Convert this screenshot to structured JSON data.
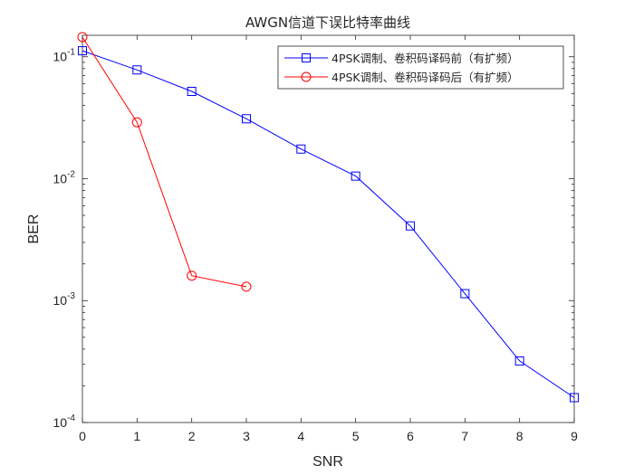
{
  "chart_data": {
    "type": "line",
    "title": "AWGN信道下误比特率曲线",
    "xlabel": "SNR",
    "ylabel": "BER",
    "xlim": [
      0,
      9
    ],
    "ylim": [
      0.0001,
      0.15
    ],
    "y_scale": "log",
    "grid": false,
    "legend_position": "top-right",
    "x_ticks": [
      "0",
      "1",
      "2",
      "3",
      "4",
      "5",
      "6",
      "7",
      "8",
      "9"
    ],
    "y_ticks": [
      {
        "value": 0.1,
        "base": "10",
        "exp": "-1"
      },
      {
        "value": 0.01,
        "base": "10",
        "exp": "-2"
      },
      {
        "value": 0.001,
        "base": "10",
        "exp": "-3"
      },
      {
        "value": 0.0001,
        "base": "10",
        "exp": "-4"
      }
    ],
    "series": [
      {
        "name": "4PSK调制、卷积码译码前（有扩频）",
        "color": "#0000ff",
        "marker": "square",
        "x": [
          0,
          1,
          2,
          3,
          4,
          5,
          6,
          7,
          8,
          9
        ],
        "y": [
          0.112,
          0.078,
          0.052,
          0.031,
          0.0175,
          0.0105,
          0.0041,
          0.00114,
          0.00032,
          0.00016
        ]
      },
      {
        "name": "4PSK调制、卷积码译码后（有扩频）",
        "color": "#ff0000",
        "marker": "circle",
        "x": [
          0,
          1,
          2,
          3
        ],
        "y": [
          0.145,
          0.029,
          0.0016,
          0.0013
        ]
      }
    ]
  }
}
